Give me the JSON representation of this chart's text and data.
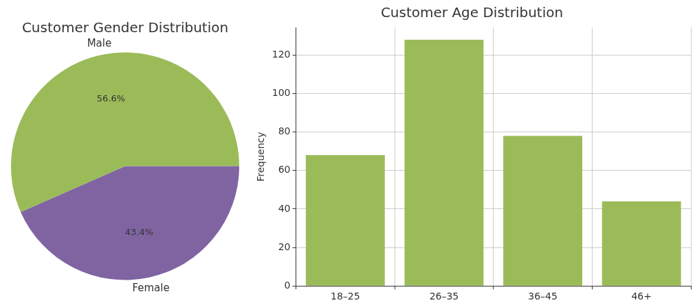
{
  "chart_data": [
    {
      "type": "pie",
      "title": "Customer Gender Distribution",
      "categories": [
        "Male",
        "Female"
      ],
      "values": [
        56.6,
        43.4
      ],
      "colors": [
        "#9bbb59",
        "#8064a2"
      ],
      "value_labels": [
        "56.6%",
        "43.4%"
      ],
      "legend": false
    },
    {
      "type": "bar",
      "title": "Customer Age Distribution",
      "categories": [
        "18–25",
        "26–35",
        "36–45",
        "46+"
      ],
      "values": [
        68,
        128,
        78,
        44
      ],
      "color": "#9bbb59",
      "ylabel": "Frequency",
      "ylim": [
        0,
        134.4
      ],
      "yticks": [
        0,
        20,
        40,
        60,
        80,
        100,
        120
      ],
      "grid": true,
      "legend": false
    }
  ]
}
